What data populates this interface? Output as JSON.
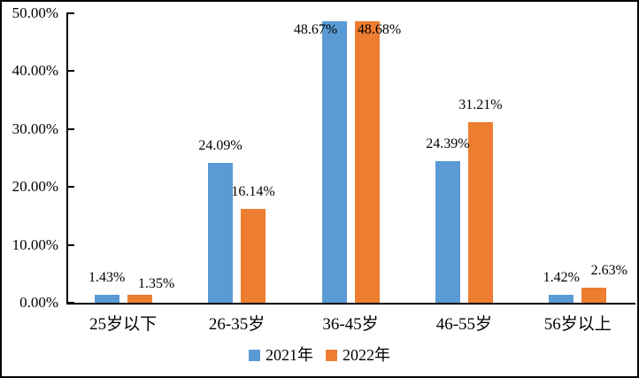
{
  "chart_data": {
    "type": "bar",
    "title": "",
    "categories": [
      "25岁以下",
      "26-35岁",
      "36-45岁",
      "46-55岁",
      "56岁以上"
    ],
    "series": [
      {
        "name": "2021年",
        "color": "#5B9BD5",
        "values": [
          1.43,
          24.09,
          48.67,
          24.39,
          1.42
        ],
        "labels": [
          "1.43%",
          "24.09%",
          "48.67%",
          "24.39%",
          "1.42%"
        ]
      },
      {
        "name": "2022年",
        "color": "#ED7D31",
        "values": [
          1.35,
          16.14,
          48.68,
          31.21,
          2.63
        ],
        "labels": [
          "1.35%",
          "16.14%",
          "48.68%",
          "31.21%",
          "2.63%"
        ]
      }
    ],
    "y_axis": {
      "min": 0,
      "max": 50,
      "step": 10,
      "tick_values": [
        0,
        10,
        20,
        30,
        40,
        50
      ],
      "tick_labels": [
        "0.00%",
        "10.00%",
        "20.00%",
        "30.00%",
        "40.00%",
        "50.00%"
      ]
    },
    "xlabel": "",
    "ylabel": "",
    "grid": false,
    "legend_position": "bottom",
    "axis_color": "#000000",
    "label_offsets": {
      "s0": [
        [
          0,
          0
        ],
        [
          0,
          0
        ],
        [
          -21,
          29
        ],
        [
          0,
          0
        ],
        [
          0,
          0
        ]
      ],
      "s1": [
        [
          19,
          7
        ],
        [
          0,
          0
        ],
        [
          14,
          29
        ],
        [
          0,
          0
        ],
        [
          17,
          0
        ]
      ]
    }
  }
}
